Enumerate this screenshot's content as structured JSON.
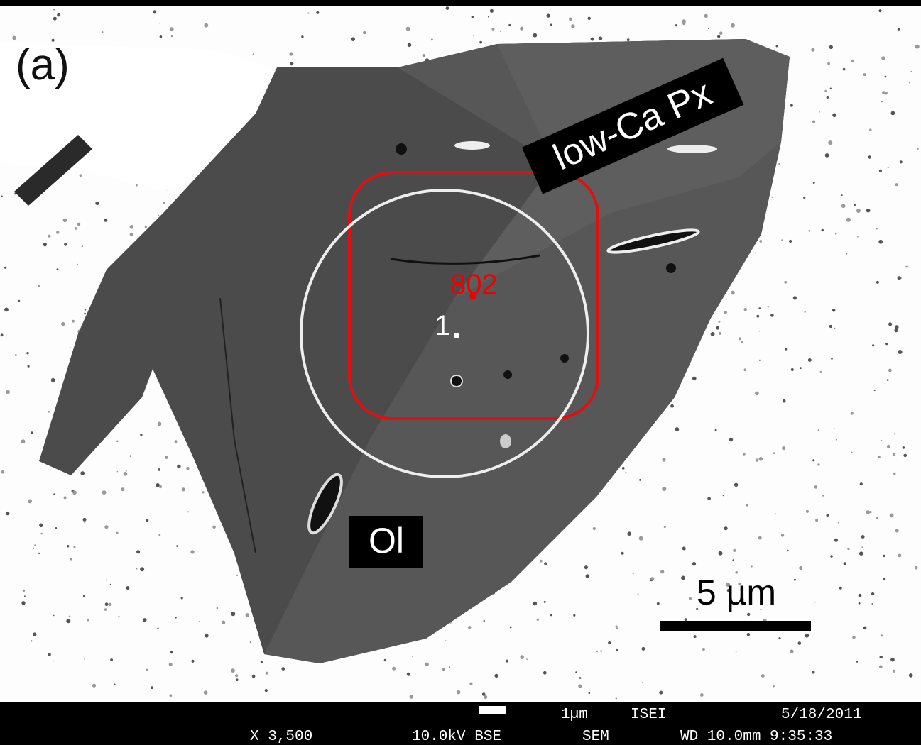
{
  "panel_label": "(a)",
  "labels": {
    "low_ca_px": "low-Ca Px",
    "spot_802": "802",
    "spot_1": "1",
    "ol": "Ol"
  },
  "scale_bar": "5 µm",
  "footer": {
    "bar_label": "1µm",
    "institute": "ISEI",
    "date": "5/18/2011",
    "magnification": "X 3,500",
    "voltage_mode": "10.0kV BSE",
    "instrument": "SEM",
    "wd_time": "WD 10.0mm 9:35:33"
  }
}
